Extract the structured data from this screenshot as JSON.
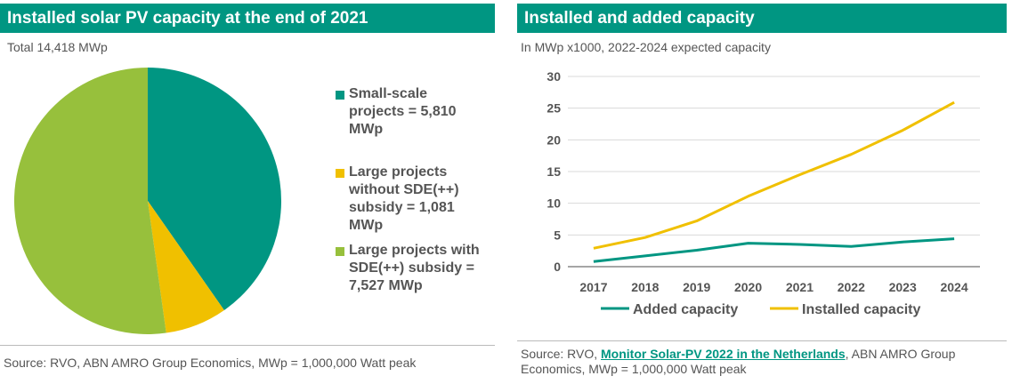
{
  "left_panel": {
    "title": "Installed solar PV capacity at the end of 2021",
    "subtitle": "Total 14,418 MWp",
    "source": "Source: RVO, ABN AMRO Group Economics, MWp = 1,000,000 Watt peak"
  },
  "right_panel": {
    "title": "Installed and added capacity",
    "subtitle": "In MWp x1000, 2022-2024 expected capacity",
    "source_prefix": "Source: RVO, ",
    "source_link": "Monitor Solar-PV 2022 in the Netherlands",
    "source_suffix": ", ABN AMRO Group Economics, MWp = 1,000,000 Watt peak"
  },
  "colors": {
    "teal": "#009682",
    "yellow": "#f0c000",
    "green": "#97c03c"
  },
  "chart_data": [
    {
      "type": "pie",
      "title": "Installed solar PV capacity at the end of 2021",
      "total_label": "Total 14,418 MWp",
      "slices": [
        {
          "label": "Small-scale projects = 5,810 MWp",
          "value": 5810,
          "color": "#009682"
        },
        {
          "label": "Large projects without SDE(++) subsidy = 1,081 MWp",
          "value": 1081,
          "color": "#f0c000"
        },
        {
          "label": "Large projects with SDE(++) subsidy = 7,527 MWp",
          "value": 7527,
          "color": "#97c03c"
        }
      ],
      "legend_position": "right"
    },
    {
      "type": "line",
      "title": "Installed and added capacity",
      "subtitle": "In MWp x1000, 2022-2024 expected capacity",
      "x": [
        "2017",
        "2018",
        "2019",
        "2020",
        "2021",
        "2022",
        "2023",
        "2024"
      ],
      "yticks": [
        "0",
        "5",
        "10",
        "15",
        "20",
        "25",
        "30"
      ],
      "ylim": [
        0,
        30
      ],
      "grid": true,
      "legend_position": "bottom",
      "series": [
        {
          "name": "Added capacity",
          "color": "#009682",
          "values": [
            0.8,
            1.7,
            2.6,
            3.7,
            3.5,
            3.2,
            3.9,
            4.4
          ]
        },
        {
          "name": "Installed capacity",
          "color": "#f0c000",
          "values": [
            2.9,
            4.6,
            7.2,
            11.1,
            14.5,
            17.7,
            21.5,
            25.9
          ]
        }
      ]
    }
  ]
}
